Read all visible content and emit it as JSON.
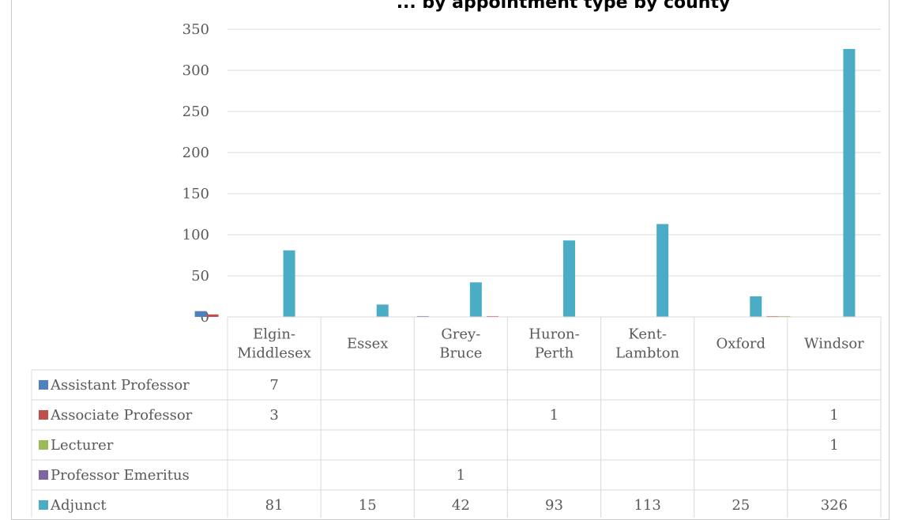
{
  "chart_data": {
    "type": "bar",
    "title": "... by appointment type by county",
    "categories": [
      [
        "Elgin-",
        "Middlesex"
      ],
      [
        "Essex"
      ],
      [
        "Grey-",
        "Bruce"
      ],
      [
        "Huron-",
        "Perth"
      ],
      [
        "Kent-",
        "Lambton"
      ],
      [
        "Oxford"
      ],
      [
        "Windsor"
      ]
    ],
    "series": [
      {
        "name": "Assistant Professor",
        "color": "#4f81bd",
        "values": [
          7,
          null,
          null,
          null,
          null,
          null,
          null
        ]
      },
      {
        "name": "Associate Professor",
        "color": "#c0504d",
        "values": [
          3,
          null,
          null,
          1,
          null,
          null,
          1
        ]
      },
      {
        "name": "Lecturer",
        "color": "#9bbb59",
        "values": [
          null,
          null,
          null,
          null,
          null,
          null,
          1
        ]
      },
      {
        "name": "Professor Emeritus",
        "color": "#8064a2",
        "values": [
          null,
          null,
          1,
          null,
          null,
          null,
          null
        ]
      },
      {
        "name": "Adjunct",
        "color": "#4bacc6",
        "values": [
          81,
          15,
          42,
          93,
          113,
          25,
          326
        ]
      }
    ],
    "ylim": [
      0,
      350
    ],
    "yticks": [
      0,
      50,
      100,
      150,
      200,
      250,
      300,
      350
    ],
    "grid": true,
    "legend": "data-table"
  }
}
